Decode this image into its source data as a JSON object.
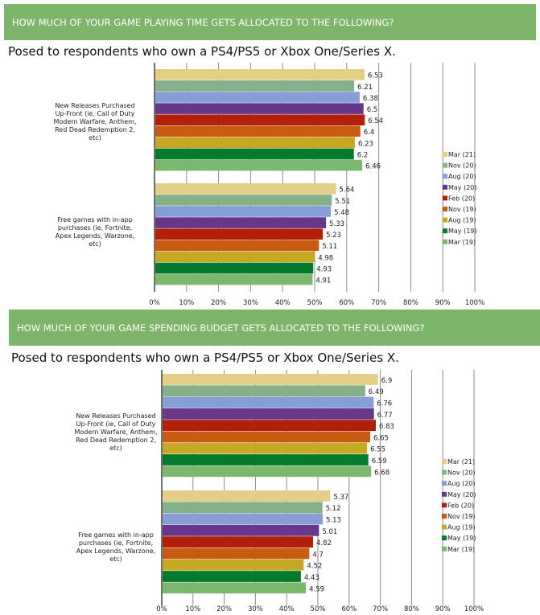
{
  "sections": [
    {
      "banner": "HOW MUCH OF YOUR GAME PLAYING TIME GETS ALLOCATED TO THE FOLLOWING?",
      "subtitle": "Posed to respondents who own a PS4/PS5 or Xbox One/Series X."
    },
    {
      "banner": "HOW MUCH OF YOUR GAME SPENDING BUDGET GETS ALLOCATED TO THE FOLLOWING?",
      "subtitle": "Posed to respondents who own a PS4/PS5 or Xbox One/Series X."
    }
  ],
  "chart_data": [
    {
      "type": "bar",
      "orientation": "horizontal",
      "title": "HOW MUCH OF YOUR GAME PLAYING TIME GETS ALLOCATED TO THE FOLLOWING?",
      "subtitle": "Posed to respondents who own a PS4/PS5 or Xbox One/Series X.",
      "categories": [
        "New Releases Purchased Up-Front (ie, Call of Duty Modern Warfare, Anthem, Red Dead Redemption 2, etc)",
        "Free games with in-app purchases (ie, Fortnite, Apex Legends, Warzone, etc)"
      ],
      "series": [
        {
          "name": "Mar (21)",
          "color": "#e3ce88",
          "values": [
            6.53,
            5.64
          ]
        },
        {
          "name": "Nov (20)",
          "color": "#84b08a",
          "values": [
            6.21,
            5.51
          ]
        },
        {
          "name": "Aug (20)",
          "color": "#869ed4",
          "values": [
            6.38,
            5.48
          ]
        },
        {
          "name": "May (20)",
          "color": "#67378a",
          "values": [
            6.5,
            5.33
          ]
        },
        {
          "name": "Feb (20)",
          "color": "#b3200a",
          "values": [
            6.54,
            5.23
          ]
        },
        {
          "name": "Nov (19)",
          "color": "#c75b12",
          "values": [
            6.4,
            5.11
          ]
        },
        {
          "name": "Aug (19)",
          "color": "#c6a824",
          "values": [
            6.23,
            4.98
          ]
        },
        {
          "name": "May (19)",
          "color": "#047a2c",
          "values": [
            6.2,
            4.93
          ]
        },
        {
          "name": "Mar (19)",
          "color": "#7cb86b",
          "values": [
            6.46,
            4.91
          ]
        }
      ],
      "value_scale_note": "bar length = value x 10 percent of axis",
      "x_ticks": [
        "0%",
        "10%",
        "20%",
        "30%",
        "40%",
        "50%",
        "60%",
        "70%",
        "80%",
        "90%",
        "100%"
      ],
      "xlim": [
        0,
        100
      ],
      "grid": true,
      "legend": "right"
    },
    {
      "type": "bar",
      "orientation": "horizontal",
      "title": "HOW MUCH OF YOUR GAME SPENDING BUDGET GETS ALLOCATED TO THE FOLLOWING?",
      "subtitle": "Posed to respondents who own a PS4/PS5 or Xbox One/Series X.",
      "categories": [
        "New Releases Purchased Up-Front (ie, Call of Duty Modern Warfare, Anthem, Red Dead Redemption 2, etc)",
        "Free games with in-app purchases (ie, Fortnite, Apex Legends, Warzone, etc)"
      ],
      "series": [
        {
          "name": "Mar (21)",
          "color": "#e3ce88",
          "values": [
            6.9,
            5.37
          ]
        },
        {
          "name": "Nov (20)",
          "color": "#84b08a",
          "values": [
            6.49,
            5.12
          ]
        },
        {
          "name": "Aug (20)",
          "color": "#869ed4",
          "values": [
            6.76,
            5.13
          ]
        },
        {
          "name": "May (20)",
          "color": "#67378a",
          "values": [
            6.77,
            5.01
          ]
        },
        {
          "name": "Feb (20)",
          "color": "#b3200a",
          "values": [
            6.83,
            4.82
          ]
        },
        {
          "name": "Nov (19)",
          "color": "#c75b12",
          "values": [
            6.65,
            4.7
          ]
        },
        {
          "name": "Aug (19)",
          "color": "#c6a824",
          "values": [
            6.55,
            4.52
          ]
        },
        {
          "name": "May (19)",
          "color": "#047a2c",
          "values": [
            6.59,
            4.43
          ]
        },
        {
          "name": "Mar (19)",
          "color": "#7cb86b",
          "values": [
            6.68,
            4.59
          ]
        }
      ],
      "value_scale_note": "bar length = value x 10 percent of axis",
      "x_ticks": [
        "0%",
        "10%",
        "20%",
        "30%",
        "40%",
        "50%",
        "60%",
        "70%",
        "80%",
        "90%",
        "100%"
      ],
      "xlim": [
        0,
        100
      ],
      "grid": true,
      "legend": "right"
    }
  ]
}
